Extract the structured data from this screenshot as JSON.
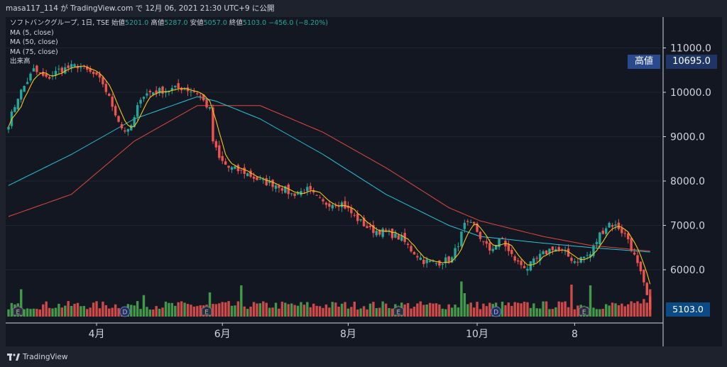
{
  "header": {
    "text": "masa117_114 が TradingView.com で 12月 06, 2021 21:30 UTC+9 に公開"
  },
  "legend": {
    "symbol": "ソフトバンクグループ, 1日, TSE",
    "open_label": "始値",
    "open": "5201.0",
    "high_label": "高値",
    "high": "5287.0",
    "low_label": "安値",
    "low": "5057.0",
    "close_label": "終値",
    "close": "5103.0",
    "change": "−456.0 (−8.20%)",
    "ma5": "MA (5, close)",
    "ma50": "MA (50, close)",
    "ma75": "MA (75, close)",
    "volume": "出来高"
  },
  "tags": {
    "high_label": "高値",
    "high_value": "10695.0",
    "last_value": "5103.0"
  },
  "footer": {
    "brand": "TradingView"
  },
  "colors": {
    "up": "#26a69a",
    "down": "#ef5350",
    "volume_up": "#4caf50",
    "volume_down": "#ef5350",
    "ma5": "#f5c518",
    "ma50": "#26c6da",
    "ma75": "#e0483e",
    "background": "#131722"
  },
  "chart_data": {
    "type": "candlestick",
    "y_axis_ticks": [
      "11000.0",
      "10000.0",
      "9000.0",
      "8000.0",
      "7000.0",
      "6000.0"
    ],
    "y_axis_ticks_numeric": [
      11000,
      10000,
      9000,
      8000,
      7000,
      6000
    ],
    "ylim": [
      5000,
      11800
    ],
    "x_axis_ticks": [
      "4月",
      "6月",
      "8月",
      "10月",
      "8"
    ],
    "x_axis_tick_index": [
      28,
      68,
      108,
      149,
      180
    ],
    "n_bars": 205,
    "events": [
      {
        "label": "E",
        "index": 3
      },
      {
        "label": "D",
        "index": 37
      },
      {
        "label": "E",
        "index": 63
      },
      {
        "label": "E",
        "index": 124
      },
      {
        "label": "D",
        "index": 155
      },
      {
        "label": "E",
        "index": 183
      }
    ],
    "close_path": [
      [
        0,
        9300
      ],
      [
        3,
        9900
      ],
      [
        8,
        10500
      ],
      [
        12,
        10300
      ],
      [
        16,
        10500
      ],
      [
        22,
        10600
      ],
      [
        27,
        10400
      ],
      [
        30,
        10200
      ],
      [
        33,
        9700
      ],
      [
        36,
        9200
      ],
      [
        38,
        9100
      ],
      [
        40,
        9400
      ],
      [
        42,
        9900
      ],
      [
        45,
        10000
      ],
      [
        50,
        10050
      ],
      [
        55,
        10100
      ],
      [
        60,
        10000
      ],
      [
        64,
        9600
      ],
      [
        65,
        8900
      ],
      [
        67,
        8500
      ],
      [
        70,
        8300
      ],
      [
        75,
        8200
      ],
      [
        80,
        8000
      ],
      [
        86,
        7900
      ],
      [
        90,
        7700
      ],
      [
        95,
        7800
      ],
      [
        100,
        7500
      ],
      [
        106,
        7500
      ],
      [
        110,
        7200
      ],
      [
        115,
        6900
      ],
      [
        120,
        6850
      ],
      [
        125,
        6700
      ],
      [
        128,
        6450
      ],
      [
        132,
        6200
      ],
      [
        136,
        6150
      ],
      [
        141,
        6250
      ],
      [
        143,
        6600
      ],
      [
        145,
        7000
      ],
      [
        148,
        7000
      ],
      [
        151,
        6600
      ],
      [
        153,
        6450
      ],
      [
        157,
        6700
      ],
      [
        159,
        6400
      ],
      [
        162,
        6150
      ],
      [
        165,
        6050
      ],
      [
        169,
        6300
      ],
      [
        173,
        6500
      ],
      [
        177,
        6350
      ],
      [
        180,
        6200
      ],
      [
        185,
        6350
      ],
      [
        188,
        6800
      ],
      [
        191,
        7050
      ],
      [
        194,
        6950
      ],
      [
        197,
        6700
      ],
      [
        199,
        6300
      ],
      [
        201,
        5900
      ],
      [
        203,
        5400
      ],
      [
        204,
        5103
      ]
    ],
    "ma50_path": [
      [
        0,
        7900
      ],
      [
        20,
        8600
      ],
      [
        40,
        9400
      ],
      [
        60,
        9900
      ],
      [
        66,
        9800
      ],
      [
        80,
        9400
      ],
      [
        100,
        8600
      ],
      [
        120,
        7700
      ],
      [
        140,
        7000
      ],
      [
        150,
        6750
      ],
      [
        170,
        6600
      ],
      [
        185,
        6500
      ],
      [
        204,
        6400
      ]
    ],
    "ma75_path": [
      [
        0,
        7200
      ],
      [
        20,
        7700
      ],
      [
        40,
        8900
      ],
      [
        60,
        9700
      ],
      [
        80,
        9700
      ],
      [
        100,
        9100
      ],
      [
        120,
        8300
      ],
      [
        140,
        7400
      ],
      [
        150,
        7100
      ],
      [
        170,
        6750
      ],
      [
        185,
        6550
      ],
      [
        204,
        6420
      ]
    ],
    "volume_spikes": [
      {
        "index": 4,
        "value": 0.7
      },
      {
        "index": 43,
        "value": 0.55
      },
      {
        "index": 64,
        "value": 0.62
      },
      {
        "index": 74,
        "value": 0.8
      },
      {
        "index": 144,
        "value": 0.9
      },
      {
        "index": 145,
        "value": 0.6
      },
      {
        "index": 179,
        "value": 0.82
      },
      {
        "index": 185,
        "value": 0.8
      },
      {
        "index": 202,
        "value": 0.45
      },
      {
        "index": 204,
        "value": 0.7
      }
    ]
  }
}
